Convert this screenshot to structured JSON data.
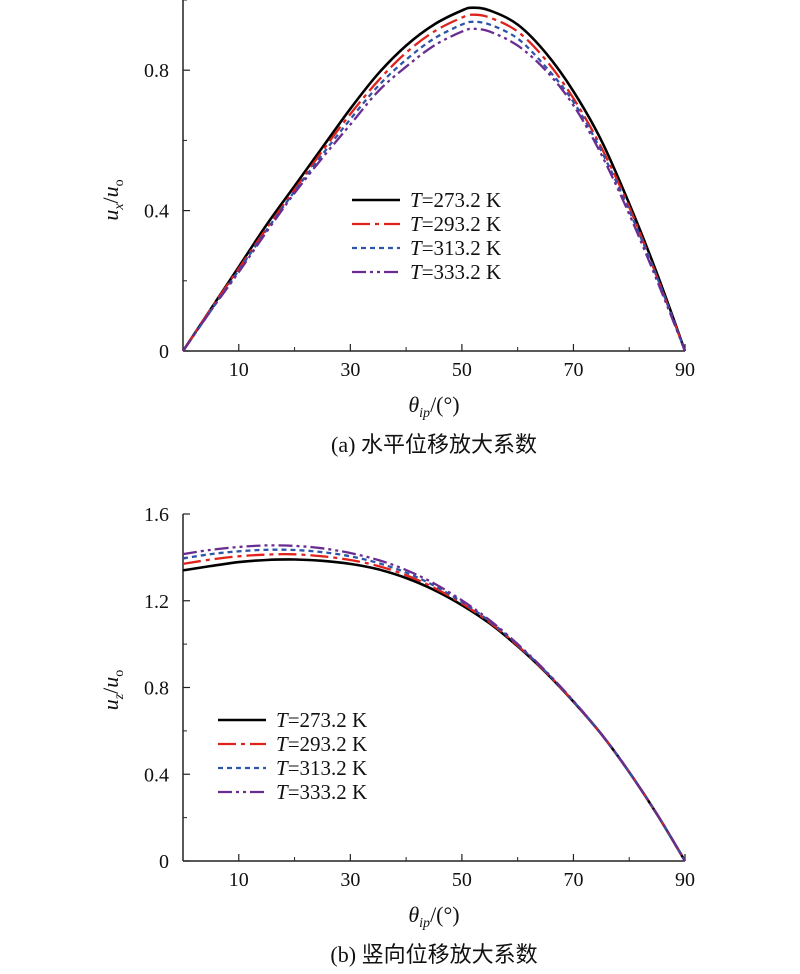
{
  "chart_data": [
    {
      "type": "line",
      "panel": "a",
      "caption": "(a) 水平位移放大系数",
      "xlabel": {
        "sym": "θ",
        "sub": "ip",
        "unit": "/(°)"
      },
      "ylabel": {
        "num": "u",
        "num_sub": "x",
        "den": "u",
        "den_sub": "o"
      },
      "xlim": [
        0,
        90
      ],
      "ylim": [
        0,
        1.0
      ],
      "xticks": [
        10,
        30,
        50,
        70,
        90
      ],
      "xtick_labels": [
        "10",
        "30",
        "50",
        "70",
        "90"
      ],
      "yticks": [
        0,
        0.4,
        0.8
      ],
      "ytick_labels": [
        "0",
        "0.4",
        "0.8"
      ],
      "legend_position": "center",
      "series": [
        {
          "name": "T=273.2 K",
          "label_italic": "T",
          "label_rest": "=273.2 K",
          "color": "#000000",
          "dash": "",
          "x": [
            0,
            5,
            10,
            15,
            20,
            25,
            30,
            35,
            40,
            45,
            50,
            52,
            55,
            60,
            65,
            70,
            75,
            80,
            85,
            90
          ],
          "y": [
            0,
            0.12,
            0.24,
            0.36,
            0.47,
            0.58,
            0.69,
            0.79,
            0.87,
            0.93,
            0.97,
            0.978,
            0.97,
            0.93,
            0.85,
            0.74,
            0.6,
            0.42,
            0.22,
            0
          ]
        },
        {
          "name": "T=293.2 K",
          "label_italic": "T",
          "label_rest": "=293.2 K",
          "color": "#e0221c",
          "dash": "18 5 4 5",
          "x": [
            0,
            5,
            10,
            15,
            20,
            25,
            30,
            35,
            40,
            45,
            50,
            52,
            55,
            60,
            65,
            70,
            75,
            80,
            85,
            90
          ],
          "y": [
            0,
            0.12,
            0.235,
            0.35,
            0.46,
            0.57,
            0.675,
            0.77,
            0.85,
            0.91,
            0.95,
            0.958,
            0.95,
            0.91,
            0.83,
            0.72,
            0.58,
            0.41,
            0.21,
            0
          ]
        },
        {
          "name": "T=313.2 K",
          "label_italic": "T",
          "label_rest": "=313.2 K",
          "color": "#2f55a8",
          "dash": "5 4",
          "x": [
            0,
            5,
            10,
            15,
            20,
            25,
            30,
            35,
            40,
            45,
            50,
            52,
            55,
            60,
            65,
            70,
            75,
            80,
            85,
            90
          ],
          "y": [
            0,
            0.115,
            0.23,
            0.345,
            0.455,
            0.56,
            0.66,
            0.755,
            0.83,
            0.89,
            0.93,
            0.938,
            0.93,
            0.89,
            0.81,
            0.71,
            0.57,
            0.4,
            0.21,
            0
          ]
        },
        {
          "name": "T=333.2 K",
          "label_italic": "T",
          "label_rest": "=333.2 K",
          "color": "#6a2c91",
          "dash": "14 4 3 4 3 4",
          "x": [
            0,
            5,
            10,
            15,
            20,
            25,
            30,
            35,
            40,
            45,
            50,
            52,
            55,
            60,
            65,
            70,
            75,
            80,
            85,
            90
          ],
          "y": [
            0,
            0.115,
            0.225,
            0.34,
            0.45,
            0.55,
            0.645,
            0.74,
            0.81,
            0.87,
            0.91,
            0.918,
            0.91,
            0.87,
            0.8,
            0.7,
            0.56,
            0.39,
            0.2,
            0
          ]
        }
      ]
    },
    {
      "type": "line",
      "panel": "b",
      "caption": "(b) 竖向位移放大系数",
      "xlabel": {
        "sym": "θ",
        "sub": "ip",
        "unit": "/(°)"
      },
      "ylabel": {
        "num": "u",
        "num_sub": "z",
        "den": "u",
        "den_sub": "o"
      },
      "xlim": [
        0,
        90
      ],
      "ylim": [
        0,
        1.6
      ],
      "xticks": [
        10,
        30,
        50,
        70,
        90
      ],
      "xtick_labels": [
        "10",
        "30",
        "50",
        "70",
        "90"
      ],
      "yticks": [
        0,
        0.4,
        0.8,
        1.2,
        1.6
      ],
      "ytick_labels": [
        "0",
        "0.4",
        "0.8",
        "1.2",
        "1.6"
      ],
      "legend_position": "lower-left",
      "series": [
        {
          "name": "T=273.2 K",
          "label_italic": "T",
          "label_rest": "=273.2 K",
          "color": "#000000",
          "dash": "",
          "x": [
            0,
            5,
            10,
            15,
            20,
            25,
            30,
            35,
            40,
            45,
            50,
            55,
            60,
            65,
            70,
            75,
            80,
            85,
            90
          ],
          "y": [
            1.34,
            1.36,
            1.378,
            1.388,
            1.39,
            1.384,
            1.37,
            1.345,
            1.305,
            1.25,
            1.18,
            1.095,
            0.99,
            0.87,
            0.735,
            0.585,
            0.41,
            0.215,
            0
          ]
        },
        {
          "name": "T=293.2 K",
          "label_italic": "T",
          "label_rest": "=293.2 K",
          "color": "#e0221c",
          "dash": "18 5 4 5",
          "x": [
            0,
            5,
            10,
            15,
            20,
            25,
            30,
            35,
            40,
            45,
            50,
            55,
            60,
            65,
            70,
            75,
            80,
            85,
            90
          ],
          "y": [
            1.37,
            1.39,
            1.405,
            1.413,
            1.414,
            1.405,
            1.388,
            1.36,
            1.318,
            1.26,
            1.188,
            1.1,
            0.993,
            0.872,
            0.736,
            0.585,
            0.41,
            0.215,
            0
          ]
        },
        {
          "name": "T=313.2 K",
          "label_italic": "T",
          "label_rest": "=313.2 K",
          "color": "#2f55a8",
          "dash": "5 4",
          "x": [
            0,
            5,
            10,
            15,
            20,
            25,
            30,
            35,
            40,
            45,
            50,
            55,
            60,
            65,
            70,
            75,
            80,
            85,
            90
          ],
          "y": [
            1.395,
            1.415,
            1.428,
            1.435,
            1.434,
            1.424,
            1.405,
            1.374,
            1.33,
            1.27,
            1.195,
            1.105,
            0.997,
            0.874,
            0.737,
            0.585,
            0.41,
            0.215,
            0
          ]
        },
        {
          "name": "T=333.2 K",
          "label_italic": "T",
          "label_rest": "=333.2 K",
          "color": "#6a2c91",
          "dash": "14 4 3 4 3 4",
          "x": [
            0,
            5,
            10,
            15,
            20,
            25,
            30,
            35,
            40,
            45,
            50,
            55,
            60,
            65,
            70,
            75,
            80,
            85,
            90
          ],
          "y": [
            1.415,
            1.435,
            1.448,
            1.455,
            1.453,
            1.442,
            1.42,
            1.388,
            1.342,
            1.28,
            1.202,
            1.11,
            1.0,
            0.876,
            0.738,
            0.585,
            0.41,
            0.215,
            0
          ]
        }
      ]
    }
  ]
}
